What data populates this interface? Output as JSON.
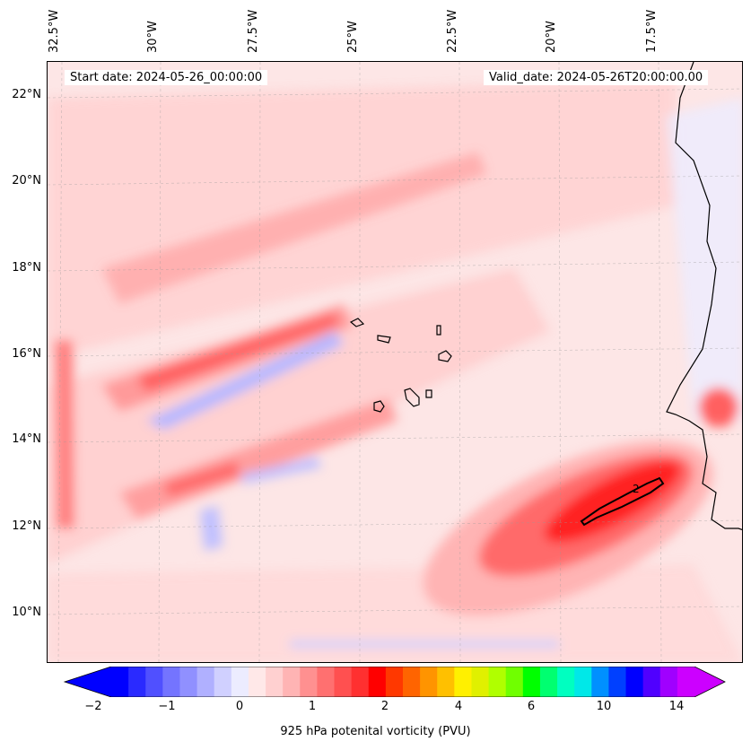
{
  "map": {
    "start_date_label": "Start date: 2024-05-26_00:00:00",
    "valid_date_label": "Valid_date: 2024-05-26T20:00:00.00",
    "lon_labels": [
      "32.5°W",
      "30°W",
      "27.5°W",
      "25°W",
      "22.5°W",
      "20°W",
      "17.5°W"
    ],
    "lat_labels": [
      "22°N",
      "20°N",
      "18°N",
      "16°N",
      "14°N",
      "12°N",
      "10°N"
    ],
    "contour_label": "2",
    "extent": {
      "lon_min": -32.6,
      "lon_max": -15.7,
      "lat_min": 8.9,
      "lat_max": 22.8
    }
  },
  "colorbar": {
    "label": "925 hPa potenital vorticity (PVU)",
    "tick_labels": [
      "−2",
      "−1",
      "0",
      "1",
      "2",
      "4",
      "6",
      "10",
      "14"
    ],
    "colors": [
      "#0000ff",
      "#2a2aff",
      "#5050ff",
      "#7474ff",
      "#9090ff",
      "#b0b0ff",
      "#d0d0ff",
      "#ececff",
      "#ffe8e8",
      "#ffd0d0",
      "#ffb4b4",
      "#ff9090",
      "#ff7070",
      "#ff5050",
      "#ff3030",
      "#ff0000",
      "#ff3800",
      "#ff6400",
      "#ff9400",
      "#ffc000",
      "#fff000",
      "#e0f000",
      "#b0ff00",
      "#70ff00",
      "#00ff00",
      "#00ff70",
      "#00ffc0",
      "#00e8e8",
      "#0090ff",
      "#0040ff",
      "#0000ff",
      "#5000ff",
      "#a000ff",
      "#cc00ff"
    ],
    "min_color": "#0000ff",
    "max_color": "#cc00ff"
  }
}
